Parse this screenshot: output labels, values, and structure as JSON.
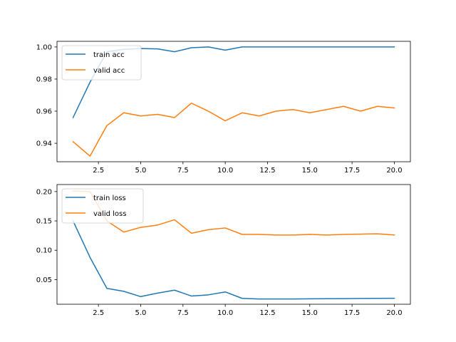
{
  "chart_data": [
    {
      "type": "line",
      "title": "",
      "xlabel": "",
      "ylabel": "",
      "x": [
        1,
        2,
        3,
        4,
        5,
        6,
        7,
        8,
        9,
        10,
        11,
        12,
        13,
        14,
        15,
        16,
        17,
        18,
        19,
        20
      ],
      "xlim": [
        0.05,
        20.95
      ],
      "ylim": [
        0.9285,
        1.0035
      ],
      "xticks": [
        2.5,
        5.0,
        7.5,
        10.0,
        12.5,
        15.0,
        17.5,
        20.0
      ],
      "xtick_labels": [
        "2.5",
        "5.0",
        "7.5",
        "10.0",
        "12.5",
        "15.0",
        "17.5",
        "20.0"
      ],
      "yticks": [
        0.94,
        0.96,
        0.98,
        1.0
      ],
      "ytick_labels": [
        "0.94",
        "0.96",
        "0.98",
        "1.00"
      ],
      "grid": false,
      "legend_position": "upper left",
      "series": [
        {
          "name": "train acc",
          "color": "#1f77b4",
          "values": [
            0.956,
            0.978,
            0.997,
            0.9985,
            0.999,
            0.9988,
            0.997,
            0.9995,
            1.0,
            0.998,
            1.0,
            1.0,
            1.0,
            1.0,
            1.0,
            1.0,
            1.0,
            1.0,
            1.0,
            1.0
          ]
        },
        {
          "name": "valid acc",
          "color": "#ff7f0e",
          "values": [
            0.941,
            0.932,
            0.951,
            0.959,
            0.957,
            0.958,
            0.956,
            0.965,
            0.96,
            0.954,
            0.959,
            0.957,
            0.96,
            0.961,
            0.959,
            0.961,
            0.963,
            0.96,
            0.963,
            0.962
          ]
        }
      ]
    },
    {
      "type": "line",
      "title": "",
      "xlabel": "",
      "ylabel": "",
      "x": [
        1,
        2,
        3,
        4,
        5,
        6,
        7,
        8,
        9,
        10,
        11,
        12,
        13,
        14,
        15,
        16,
        17,
        18,
        19,
        20
      ],
      "xlim": [
        0.05,
        20.95
      ],
      "ylim": [
        0.008,
        0.212
      ],
      "xticks": [
        2.5,
        5.0,
        7.5,
        10.0,
        12.5,
        15.0,
        17.5,
        20.0
      ],
      "xtick_labels": [
        "2.5",
        "5.0",
        "7.5",
        "10.0",
        "12.5",
        "15.0",
        "17.5",
        "20.0"
      ],
      "yticks": [
        0.05,
        0.1,
        0.15,
        0.2
      ],
      "ytick_labels": [
        "0.05",
        "0.10",
        "0.15",
        "0.20"
      ],
      "grid": false,
      "legend_position": "upper left",
      "series": [
        {
          "name": "train loss",
          "color": "#1f77b4",
          "values": [
            0.15,
            0.088,
            0.035,
            0.03,
            0.021,
            0.027,
            0.032,
            0.022,
            0.024,
            0.029,
            0.018,
            0.017,
            0.017,
            0.017,
            0.0172,
            0.0174,
            0.0176,
            0.0178,
            0.018,
            0.0182
          ]
        },
        {
          "name": "valid loss",
          "color": "#ff7f0e",
          "values": [
            0.201,
            0.2,
            0.15,
            0.131,
            0.139,
            0.143,
            0.152,
            0.129,
            0.135,
            0.138,
            0.127,
            0.127,
            0.126,
            0.126,
            0.127,
            0.126,
            0.127,
            0.1275,
            0.128,
            0.126
          ]
        }
      ]
    }
  ]
}
